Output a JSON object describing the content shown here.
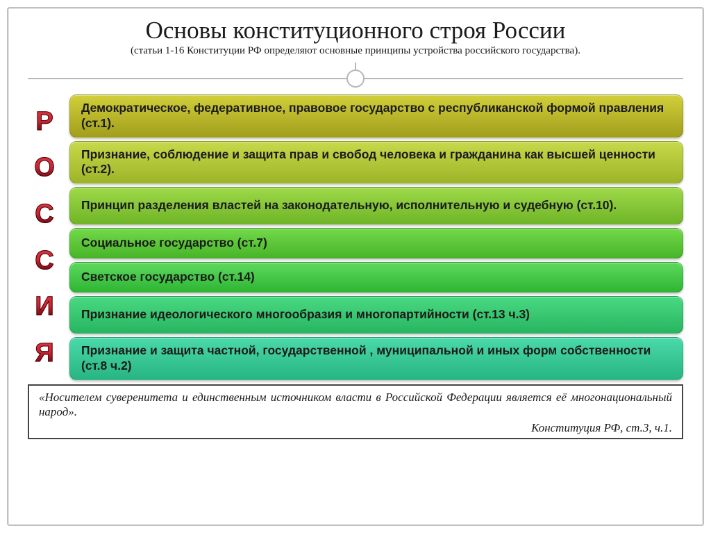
{
  "title": "Основы конституционного строя России",
  "subtitle": "(статьи 1-16 Конституции РФ определяют основные принципы устройства российского государства).",
  "side_label": [
    "Р",
    "О",
    "С",
    "С",
    "И",
    "Я"
  ],
  "bars": [
    {
      "text": "Демократическое, федеративное, правовое государство с республиканской формой правления (ст.1).",
      "gradient_top": "#d2cf3a",
      "gradient_bottom": "#a19e1c"
    },
    {
      "text": "Признание, соблюдение и защита прав и свобод человека и гражданина как высшей ценности (ст.2).",
      "gradient_top": "#c7d94a",
      "gradient_bottom": "#9eb428"
    },
    {
      "text": "Принцип разделения властей на законодательную, исполнительную и судебную (ст.10).",
      "gradient_top": "#9ed948",
      "gradient_bottom": "#6fb528"
    },
    {
      "text": "Социальное государство (ст.7)",
      "gradient_top": "#72d94a",
      "gradient_bottom": "#48b528",
      "single": true
    },
    {
      "text": "Светское государство (ст.14)",
      "gradient_top": "#5dd95e",
      "gradient_bottom": "#2fb533",
      "single": true
    },
    {
      "text": "Признание идеологического многообразия и многопартийности (ст.13 ч.3)",
      "gradient_top": "#4ad983",
      "gradient_bottom": "#28b55f"
    },
    {
      "text": "Признание и защита частной, государственной , муниципальной и иных форм собственности (ст.8 ч.2)",
      "gradient_top": "#4ad9a8",
      "gradient_bottom": "#28b584"
    }
  ],
  "quote": {
    "text": "«Носителем суверенитета и единственным источником власти в Российской Федерации является её многонациональный народ».",
    "cite": "Конституция РФ, ст.3, ч.1."
  },
  "styling": {
    "slide_border_color": "#c0c0c0",
    "connector_color": "#b8b8b8",
    "title_fontsize": 35,
    "subtitle_fontsize": 15,
    "bar_fontsize": 17.5,
    "bar_font_family": "Verdana",
    "bar_radius": 10,
    "quote_fontsize": 17,
    "side_label_gradient": [
      "#e63946",
      "#d62839",
      "#6a040f"
    ]
  }
}
